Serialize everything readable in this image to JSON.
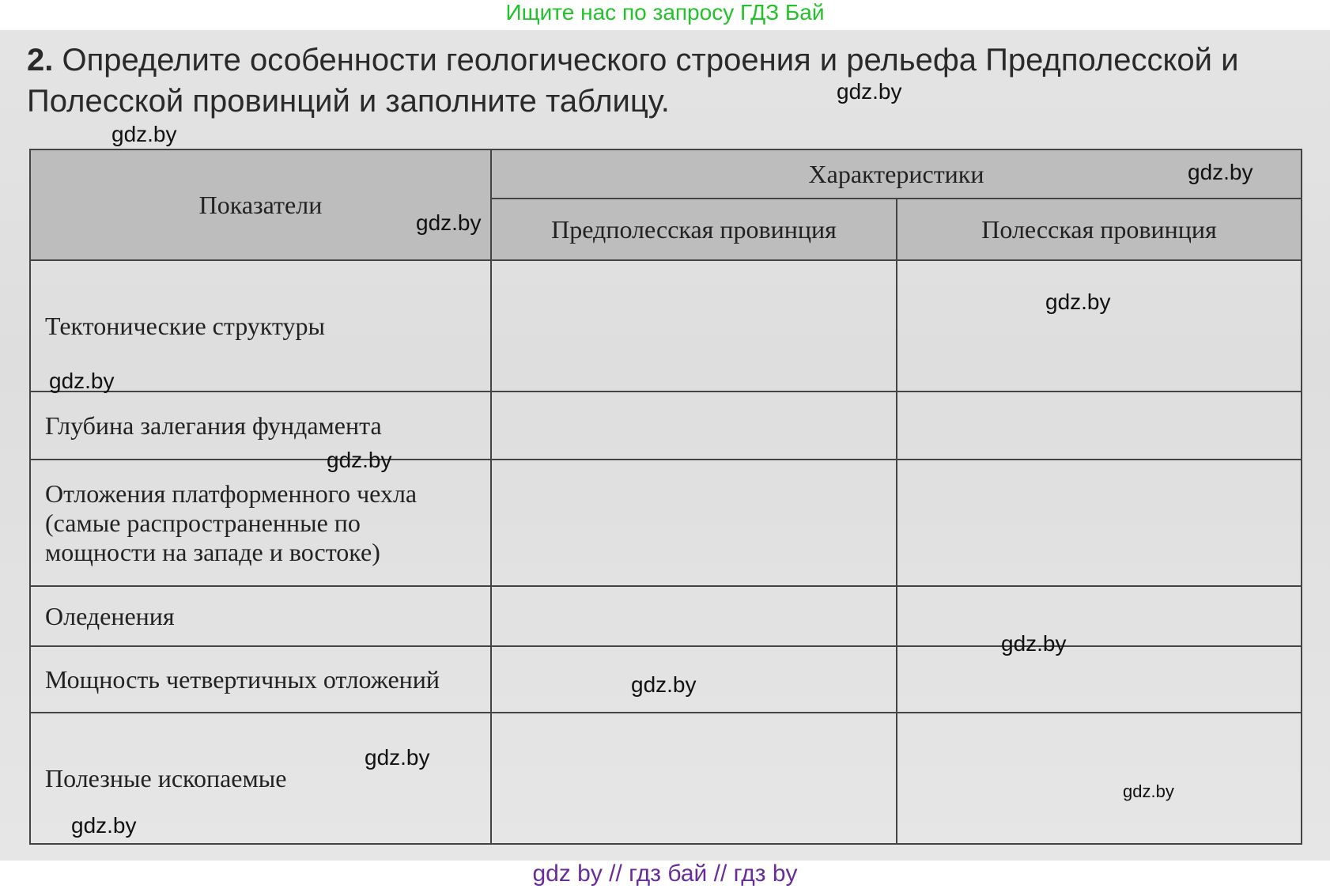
{
  "banner": "Ищите нас по запросу ГДЗ Бай",
  "task": {
    "number": "2.",
    "text": "Определите особенности геологического строения и рельефа Предполесской и Полесской провинций и заполните таблицу."
  },
  "table": {
    "col_indicators": "Показатели",
    "col_characteristics": "Характеристики",
    "col_pre_polesie": "Предполесская провинция",
    "col_polesie": "Полесская провинция",
    "rows": [
      {
        "label": "Тектонические структуры",
        "pre": "",
        "pol": ""
      },
      {
        "label": "Глубина залегания фундамента",
        "pre": "",
        "pol": ""
      },
      {
        "label": "Отложения платформенного чехла (самые распространенные по мощности на западе и востоке)",
        "pre": "",
        "pol": ""
      },
      {
        "label": "Оледенения",
        "pre": "",
        "pol": ""
      },
      {
        "label": "Мощность четвертичных отложений",
        "pre": "",
        "pol": ""
      },
      {
        "label": "Полезные ископаемые",
        "pre": "",
        "pol": ""
      }
    ]
  },
  "watermark": "gdz.by",
  "footer": "gdz by  //  гдз бай  //  гдз by"
}
